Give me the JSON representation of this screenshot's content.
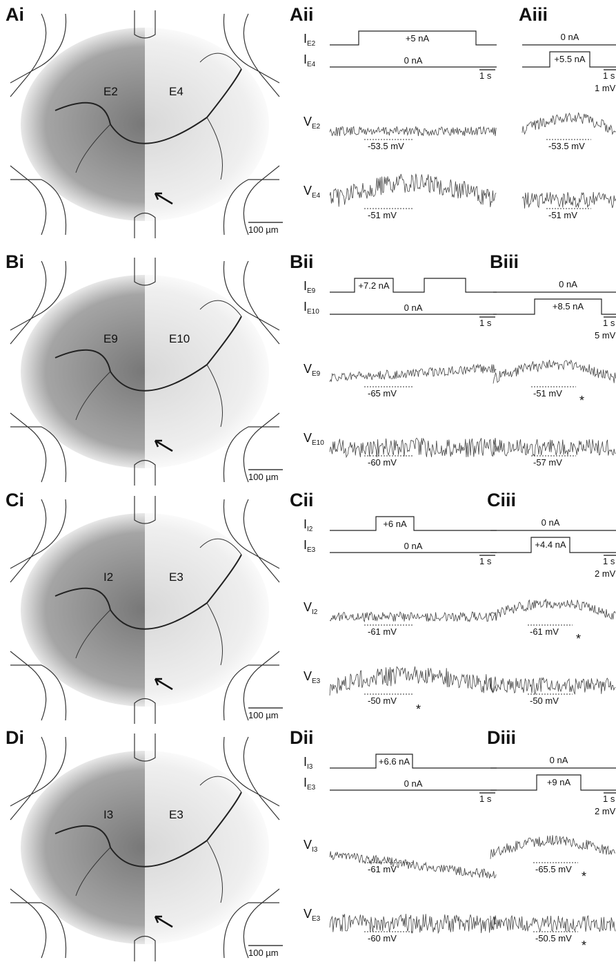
{
  "rows": [
    {
      "labels": [
        "Ai",
        "Aii",
        "Aiii"
      ],
      "image": {
        "ganglia": [
          "E2",
          "E4"
        ],
        "scale": "100 µm"
      },
      "ii": {
        "currents": [
          {
            "symbol": "I",
            "sub": "E2",
            "annotation": "+5 nA"
          },
          {
            "symbol": "I",
            "sub": "E4",
            "annotation": "0 nA"
          }
        ],
        "time_scale": "1 s",
        "voltages": [
          {
            "symbol": "V",
            "sub": "E2",
            "annotation": "-53.5 mV"
          },
          {
            "symbol": "V",
            "sub": "E4",
            "annotation": "-51 mV"
          }
        ]
      },
      "iii": {
        "currents": [
          {
            "annotation": "0 nA"
          },
          {
            "annotation": "+5.5 nA"
          }
        ],
        "time_scale": "1 s",
        "volt_scale": "1 mV",
        "voltages": [
          {
            "annotation": "-53.5 mV"
          },
          {
            "annotation": "-51 mV"
          }
        ]
      }
    },
    {
      "labels": [
        "Bi",
        "Bii",
        "Biii"
      ],
      "image": {
        "ganglia": [
          "E9",
          "E10"
        ],
        "scale": "100 µm"
      },
      "ii": {
        "currents": [
          {
            "symbol": "I",
            "sub": "E9",
            "annotation": "+7.2 nA"
          },
          {
            "symbol": "I",
            "sub": "E10",
            "annotation": "0 nA"
          }
        ],
        "time_scale": "1 s",
        "voltages": [
          {
            "symbol": "V",
            "sub": "E9",
            "annotation": "-65 mV"
          },
          {
            "symbol": "V",
            "sub": "E10",
            "annotation": "-60 mV"
          }
        ]
      },
      "iii": {
        "currents": [
          {
            "annotation": "0 nA"
          },
          {
            "annotation": "+8.5 nA"
          }
        ],
        "time_scale": "1 s",
        "volt_scale": "5 mV",
        "voltages": [
          {
            "annotation": "-51 mV",
            "marker": "*"
          },
          {
            "annotation": "-57 mV"
          }
        ]
      }
    },
    {
      "labels": [
        "Ci",
        "Cii",
        "Ciii"
      ],
      "image": {
        "ganglia": [
          "I2",
          "E3"
        ],
        "scale": "100 µm"
      },
      "ii": {
        "currents": [
          {
            "symbol": "I",
            "sub": "I2",
            "annotation": "+6 nA"
          },
          {
            "symbol": "I",
            "sub": "E3",
            "annotation": "0 nA"
          }
        ],
        "time_scale": "1 s",
        "voltages": [
          {
            "symbol": "V",
            "sub": "I2",
            "annotation": "-61 mV"
          },
          {
            "symbol": "V",
            "sub": "E3",
            "annotation": "-50 mV",
            "marker": "*"
          }
        ]
      },
      "iii": {
        "currents": [
          {
            "annotation": "0 nA"
          },
          {
            "annotation": "+4.4 nA"
          }
        ],
        "time_scale": "1 s",
        "volt_scale": "2 mV",
        "voltages": [
          {
            "annotation": "-61 mV",
            "marker": "*"
          },
          {
            "annotation": "-50 mV"
          }
        ]
      }
    },
    {
      "labels": [
        "Di",
        "Dii",
        "Diii"
      ],
      "image": {
        "ganglia": [
          "I3",
          "E3"
        ],
        "scale": "100 µm"
      },
      "ii": {
        "currents": [
          {
            "symbol": "I",
            "sub": "I3",
            "annotation": "+6.6 nA"
          },
          {
            "symbol": "I",
            "sub": "E3",
            "annotation": "0 nA"
          }
        ],
        "time_scale": "1 s",
        "voltages": [
          {
            "symbol": "V",
            "sub": "I3",
            "annotation": "-61 mV"
          },
          {
            "symbol": "V",
            "sub": "E3",
            "annotation": "-60 mV"
          }
        ]
      },
      "iii": {
        "currents": [
          {
            "annotation": "0 nA"
          },
          {
            "annotation": "+9 nA"
          }
        ],
        "time_scale": "1 s",
        "volt_scale": "2 mV",
        "voltages": [
          {
            "annotation": "-65.5 mV",
            "marker": "*"
          },
          {
            "annotation": "-50.5 mV",
            "marker": "*"
          }
        ]
      }
    }
  ]
}
